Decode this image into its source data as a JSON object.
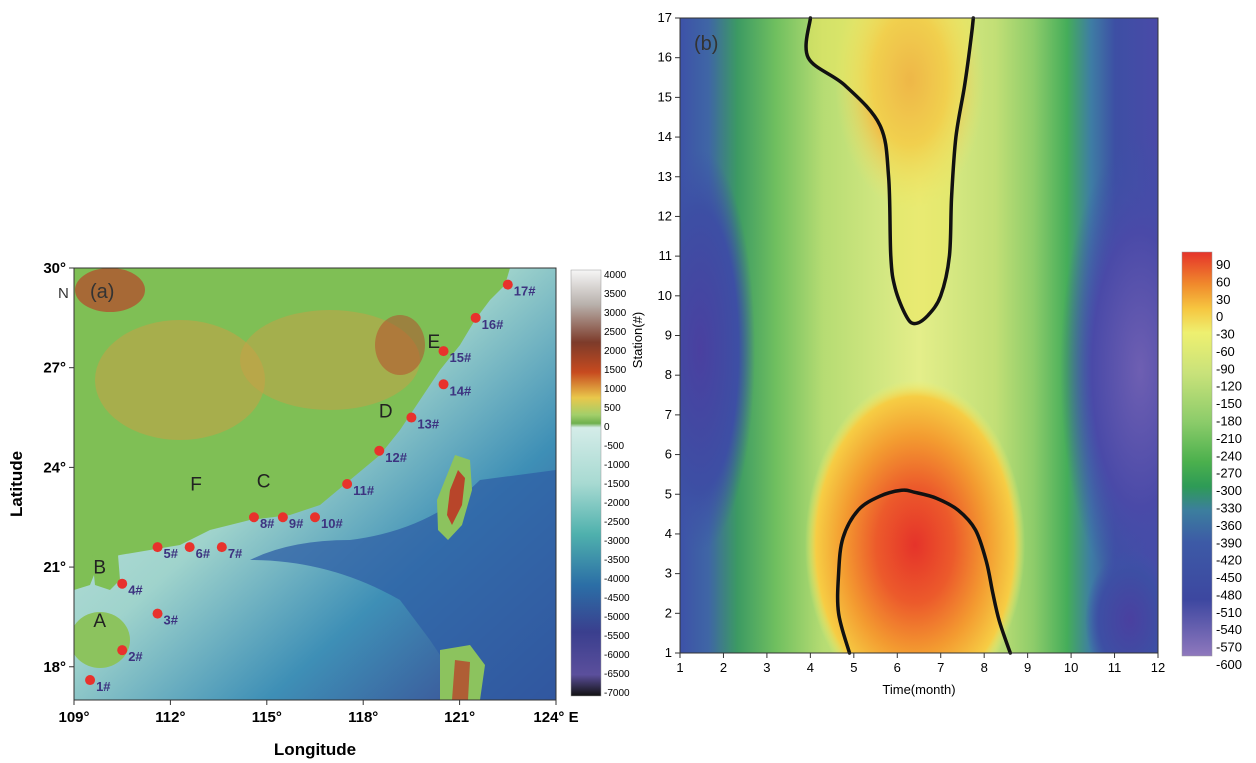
{
  "chart_data": [
    {
      "type": "map",
      "panel_label": "(a)",
      "xlabel": "Longitude",
      "ylabel": "Latitude",
      "xlim": [
        109,
        124
      ],
      "ylim": [
        17,
        30
      ],
      "x_ticks": [
        {
          "value": 109,
          "label": "109°"
        },
        {
          "value": 112,
          "label": "112°"
        },
        {
          "value": 115,
          "label": "115°"
        },
        {
          "value": 118,
          "label": "118°"
        },
        {
          "value": 121,
          "label": "121°"
        },
        {
          "value": 124,
          "label": "124° E"
        }
      ],
      "y_ticks": [
        {
          "value": 18,
          "label": "18°"
        },
        {
          "value": 21,
          "label": "21°"
        },
        {
          "value": 24,
          "label": "24°"
        },
        {
          "value": 27,
          "label": "27°"
        },
        {
          "value": 30,
          "label": "30°"
        }
      ],
      "north_label": "N",
      "colorbar": {
        "label": "Station(#)",
        "ticks": [
          "4000",
          "3500",
          "3000",
          "2500",
          "2000",
          "1500",
          "1000",
          "500",
          "0",
          "-500",
          "-1000",
          "-1500",
          "-2000",
          "-2500",
          "-3000",
          "-3500",
          "-4000",
          "-4500",
          "-5000",
          "-5500",
          "-6000",
          "-6500",
          "-7000"
        ]
      },
      "regions": [
        {
          "name": "A",
          "lon": 109.8,
          "lat": 19.2
        },
        {
          "name": "B",
          "lon": 109.8,
          "lat": 20.8
        },
        {
          "name": "C",
          "lon": 114.9,
          "lat": 23.4
        },
        {
          "name": "D",
          "lon": 118.7,
          "lat": 25.5
        },
        {
          "name": "E",
          "lon": 120.2,
          "lat": 27.6
        },
        {
          "name": "F",
          "lon": 112.8,
          "lat": 23.3
        }
      ],
      "stations": [
        {
          "label": "1#",
          "lon": 109.5,
          "lat": 17.6
        },
        {
          "label": "2#",
          "lon": 110.5,
          "lat": 18.5
        },
        {
          "label": "3#",
          "lon": 111.6,
          "lat": 19.6
        },
        {
          "label": "4#",
          "lon": 110.5,
          "lat": 20.5
        },
        {
          "label": "5#",
          "lon": 111.6,
          "lat": 21.6
        },
        {
          "label": "6#",
          "lon": 112.6,
          "lat": 21.6
        },
        {
          "label": "7#",
          "lon": 113.6,
          "lat": 21.6
        },
        {
          "label": "8#",
          "lon": 114.6,
          "lat": 22.5
        },
        {
          "label": "9#",
          "lon": 115.5,
          "lat": 22.5
        },
        {
          "label": "10#",
          "lon": 116.5,
          "lat": 22.5
        },
        {
          "label": "11#",
          "lon": 117.5,
          "lat": 23.5
        },
        {
          "label": "12#",
          "lon": 118.5,
          "lat": 24.5
        },
        {
          "label": "13#",
          "lon": 119.5,
          "lat": 25.5
        },
        {
          "label": "14#",
          "lon": 120.5,
          "lat": 26.5
        },
        {
          "label": "15#",
          "lon": 120.5,
          "lat": 27.5
        },
        {
          "label": "16#",
          "lon": 121.5,
          "lat": 28.5
        },
        {
          "label": "17#",
          "lon": 122.5,
          "lat": 29.5
        }
      ]
    },
    {
      "type": "heatmap",
      "panel_label": "(b)",
      "xlabel": "Time(month)",
      "ylabel": "Station(#)",
      "xlim": [
        1,
        12
      ],
      "ylim": [
        1,
        17
      ],
      "x_ticks": [
        1,
        2,
        3,
        4,
        5,
        6,
        7,
        8,
        9,
        10,
        11,
        12
      ],
      "y_ticks": [
        1,
        2,
        3,
        4,
        5,
        6,
        7,
        8,
        9,
        10,
        11,
        12,
        13,
        14,
        15,
        16,
        17
      ],
      "colorbar": {
        "ticks": [
          "90",
          "60",
          "30",
          "0",
          "-30",
          "-60",
          "-90",
          "-120",
          "-150",
          "-180",
          "-210",
          "-240",
          "-270",
          "-300",
          "-330",
          "-360",
          "-390",
          "-420",
          "-450",
          "-480",
          "-510",
          "-540",
          "-570",
          "-600"
        ]
      },
      "features": [
        {
          "name": "summer-maximum-south",
          "month": 6.7,
          "station": 2.2,
          "value": 90
        },
        {
          "name": "summer-maximum-north",
          "month": 6.5,
          "station": 16.2,
          "value": 30
        },
        {
          "name": "winter-minimum-early",
          "month": 1.5,
          "station": 12.5,
          "value": -420
        },
        {
          "name": "winter-minimum-late",
          "month": 11.5,
          "station": 11,
          "value": -570
        }
      ],
      "zero_contours": [
        {
          "name": "north-zero-contour",
          "points": [
            [
              4.0,
              17
            ],
            [
              3.95,
              16.0
            ],
            [
              4.8,
              15.3
            ],
            [
              5.6,
              14.3
            ],
            [
              5.8,
              13
            ],
            [
              5.85,
              11
            ],
            [
              5.95,
              10.2
            ],
            [
              6.2,
              9.5
            ],
            [
              6.4,
              9.3
            ],
            [
              6.7,
              9.5
            ],
            [
              7.0,
              10.0
            ],
            [
              7.2,
              11
            ],
            [
              7.25,
              12.5
            ],
            [
              7.35,
              14
            ],
            [
              7.55,
              15.3
            ],
            [
              7.7,
              16.5
            ],
            [
              7.75,
              17
            ]
          ]
        },
        {
          "name": "south-zero-contour",
          "points": [
            [
              4.9,
              1
            ],
            [
              4.65,
              2
            ],
            [
              4.65,
              3
            ],
            [
              4.75,
              3.9
            ],
            [
              5.1,
              4.6
            ],
            [
              5.6,
              4.95
            ],
            [
              6.1,
              5.1
            ],
            [
              6.4,
              5.05
            ],
            [
              6.9,
              4.9
            ],
            [
              7.4,
              4.6
            ],
            [
              7.8,
              4.1
            ],
            [
              8.05,
              3.3
            ],
            [
              8.2,
              2.5
            ],
            [
              8.35,
              1.8
            ],
            [
              8.6,
              1
            ]
          ]
        }
      ]
    }
  ]
}
